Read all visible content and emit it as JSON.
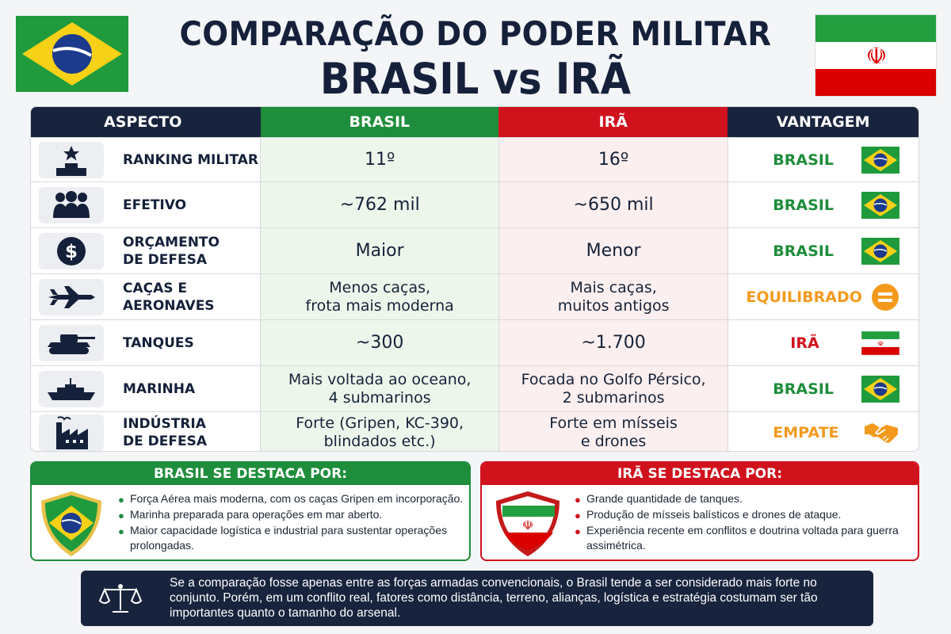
{
  "title": {
    "line1": "COMPARAÇÃO DO PODER MILITAR",
    "line2": "BRASIL vs IRÃ"
  },
  "colors": {
    "brasil_green": "#1e8d3c",
    "ira_red": "#d0121d",
    "navy": "#18243d",
    "equilibrio_orange": "#f39a1d"
  },
  "table": {
    "headers": [
      "ASPECTO",
      "BRASIL",
      "IRÃ",
      "VANTAGEM"
    ],
    "rows": [
      {
        "icon": "podium-star-icon",
        "aspect": "RANKING MILITAR",
        "brasil": "11º",
        "ira": "16º",
        "vantagem": "BRASIL",
        "vantagem_icon": "brazil-flag-icon",
        "vantagem_color": "#1e8d3c"
      },
      {
        "icon": "people-icon",
        "aspect": "EFETIVO",
        "brasil": "~762 mil",
        "ira": "~650 mil",
        "vantagem": "BRASIL",
        "vantagem_icon": "brazil-flag-icon",
        "vantagem_color": "#1e8d3c"
      },
      {
        "icon": "dollar-coin-icon",
        "aspect": "ORÇAMENTO\nDE DEFESA",
        "brasil": "Maior",
        "ira": "Menor",
        "vantagem": "BRASIL",
        "vantagem_icon": "brazil-flag-icon",
        "vantagem_color": "#1e8d3c"
      },
      {
        "icon": "fighter-jet-icon",
        "aspect": "CAÇAS E\nAERONAVES",
        "brasil": "Menos caças,\nfrota mais moderna",
        "ira": "Mais caças,\nmuitos antigos",
        "vantagem": "EQUILIBRADO",
        "vantagem_icon": "equals-icon",
        "vantagem_color": "#f39a1d"
      },
      {
        "icon": "tank-icon",
        "aspect": "TANQUES",
        "brasil": "~300",
        "ira": "~1.700",
        "vantagem": "IRÃ",
        "vantagem_icon": "iran-flag-icon",
        "vantagem_color": "#d0121d"
      },
      {
        "icon": "warship-icon",
        "aspect": "MARINHA",
        "brasil": "Mais voltada ao oceano,\n4 submarinos",
        "ira": "Focada no Golfo Pérsico,\n2 submarinos",
        "vantagem": "BRASIL",
        "vantagem_icon": "brazil-flag-icon",
        "vantagem_color": "#1e8d3c"
      },
      {
        "icon": "factory-icon",
        "aspect": "INDÚSTRIA\nDE DEFESA",
        "brasil": "Forte (Gripen, KC-390,\nblindados etc.)",
        "ira": "Forte em mísseis\ne drones",
        "vantagem": "EMPATE",
        "vantagem_icon": "handshake-icon",
        "vantagem_color": "#f39a1d"
      }
    ]
  },
  "brasil_panel": {
    "title": "BRASIL SE DESTACA POR:",
    "items": [
      "Força Aérea mais moderna, com os caças Gripen em incorporação.",
      "Marinha preparada para operações em mar aberto.",
      "Maior capacidade logística e industrial para sustentar operações prolongadas."
    ]
  },
  "ira_panel": {
    "title": "IRÃ SE DESTACA POR:",
    "items": [
      "Grande quantidade de tanques.",
      "Produção de mísseis balísticos e drones de ataque.",
      "Experiência recente em conflitos e doutrina voltada para guerra assimétrica."
    ]
  },
  "summary": {
    "icon": "scales-of-justice-icon",
    "text": "Se a comparação fosse apenas entre as forças armadas convencionais, o Brasil tende a ser considerado mais forte no conjunto. Porém, em um conflito real, fatores como distância, terreno, alianças, logística e estratégia costumam ser tão importantes quanto o tamanho do arsenal."
  }
}
